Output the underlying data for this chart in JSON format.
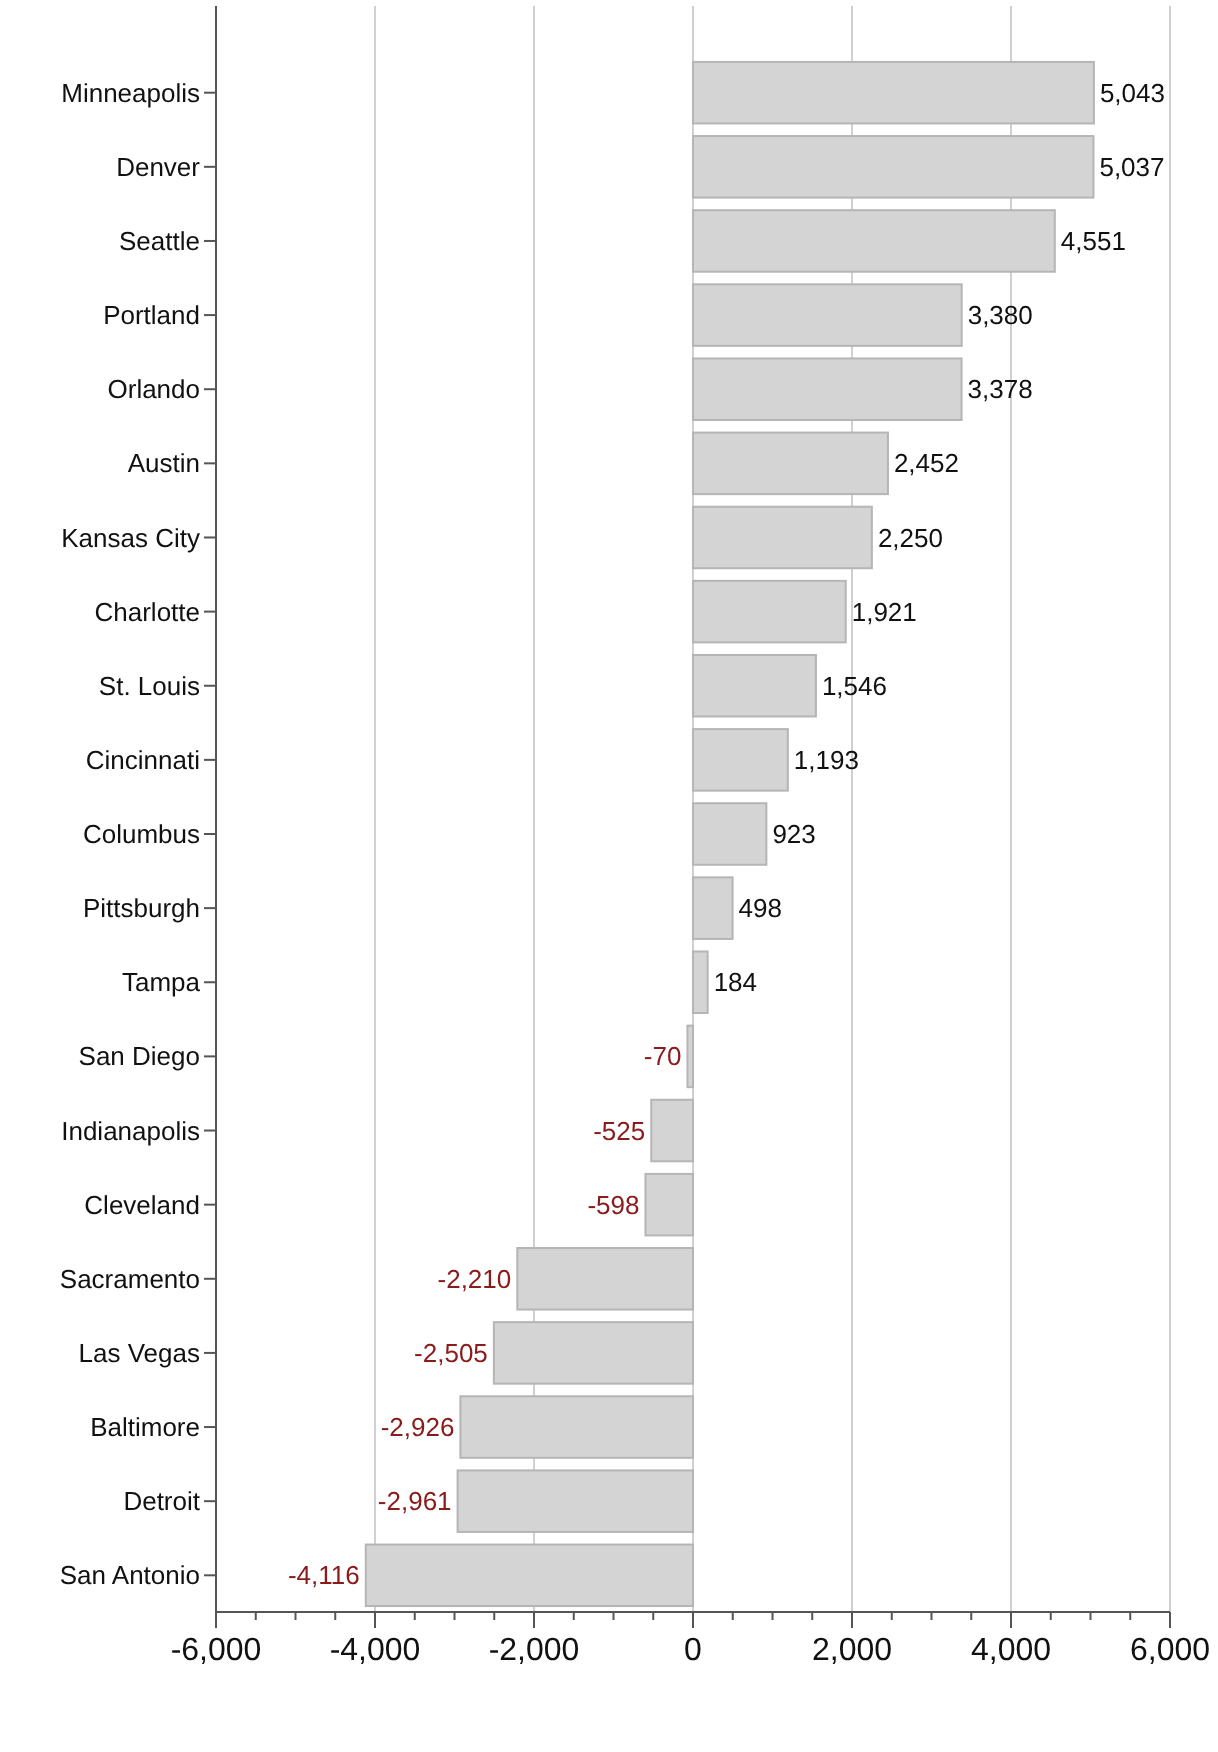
{
  "chart_data": {
    "type": "bar",
    "orientation": "horizontal",
    "categories": [
      "Minneapolis",
      "Denver",
      "Seattle",
      "Portland",
      "Orlando",
      "Austin",
      "Kansas City",
      "Charlotte",
      "St. Louis",
      "Cincinnati",
      "Columbus",
      "Pittsburgh",
      "Tampa",
      "San Diego",
      "Indianapolis",
      "Cleveland",
      "Sacramento",
      "Las Vegas",
      "Baltimore",
      "Detroit",
      "San Antonio"
    ],
    "values": [
      5043,
      5037,
      4551,
      3380,
      3378,
      2452,
      2250,
      1921,
      1546,
      1193,
      923,
      498,
      184,
      -70,
      -525,
      -598,
      -2210,
      -2505,
      -2926,
      -2961,
      -4116
    ],
    "color": "#d4d4d4",
    "xlim": [
      -6000,
      6000
    ],
    "xticks": [
      {
        "value": -6000,
        "label": "-6,000"
      },
      {
        "value": -4000,
        "label": "-4,000"
      },
      {
        "value": -2000,
        "label": "-2,000"
      },
      0,
      {
        "value": 2000,
        "label": "2,000"
      },
      {
        "value": 4000,
        "label": "4,000"
      },
      {
        "value": 6000,
        "label": "6,000"
      }
    ],
    "value_labels": [
      "5,043",
      "5,037",
      "4,551",
      "3,380",
      "3,378",
      "2,452",
      "2,250",
      "1,921",
      "1,546",
      "1,193",
      "923",
      "498",
      "184",
      "-70",
      "-525",
      "-598",
      "-2,210",
      "-2,505",
      "-2,926",
      "-2,961",
      "-4,116"
    ],
    "grid": "x"
  }
}
